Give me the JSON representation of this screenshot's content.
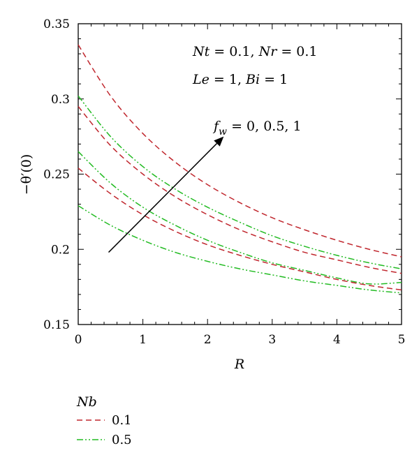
{
  "chart_data": {
    "type": "line",
    "xlabel": "R",
    "ylabel": "−θ′(0)",
    "xlim": [
      0,
      5
    ],
    "ylim": [
      0.15,
      0.35
    ],
    "xticks": [
      "0",
      "1",
      "2",
      "3",
      "4",
      "5"
    ],
    "yticks": [
      "0.15",
      "0.2",
      "0.25",
      "0.3",
      "0.35"
    ],
    "xtick_values": [
      0,
      1,
      2,
      3,
      4,
      5
    ],
    "ytick_values": [
      0.15,
      0.2,
      0.25,
      0.3,
      0.35
    ],
    "annotations": {
      "params_line1": {
        "nt": "Nt",
        "nt_val": " = 0.1, ",
        "nr": "Nr",
        "nr_val": " = 0.1"
      },
      "params_line2": {
        "le": "Le",
        "le_val": " = 1, ",
        "bi": "Bi",
        "bi_val": " = 1"
      },
      "arrow_label": {
        "f": "f",
        "sub": "w",
        "val": " = 0, 0.5, 1"
      },
      "arrow": {
        "x0": 0.47,
        "y0": 0.198,
        "x1": 2.25,
        "y1": 0.275
      }
    },
    "legend": {
      "title": "Nb",
      "placement": "below",
      "entries": [
        {
          "label": "0.1",
          "color": "#c0262d",
          "dash": "dashed"
        },
        {
          "label": "0.5",
          "color": "#22bb22",
          "dash": "dashdotdot"
        }
      ]
    },
    "series": [
      {
        "group": "0.1",
        "color": "#c0262d",
        "dash": "dashed",
        "x": [
          0,
          0.5,
          1,
          1.5,
          2,
          2.5,
          3,
          3.5,
          4,
          4.5,
          5
        ],
        "y": [
          0.336,
          0.302,
          0.277,
          0.258,
          0.243,
          0.231,
          0.221,
          0.213,
          0.206,
          0.2,
          0.195
        ]
      },
      {
        "group": "0.1",
        "color": "#c0262d",
        "dash": "dashed",
        "x": [
          0,
          0.5,
          1,
          1.5,
          2,
          2.5,
          3,
          3.5,
          4,
          4.5,
          5
        ],
        "y": [
          0.295,
          0.269,
          0.25,
          0.235,
          0.223,
          0.213,
          0.205,
          0.198,
          0.193,
          0.188,
          0.184
        ]
      },
      {
        "group": "0.1",
        "color": "#c0262d",
        "dash": "dashed",
        "x": [
          0,
          0.5,
          1,
          1.5,
          2,
          2.5,
          3,
          3.5,
          4,
          4.5,
          5
        ],
        "y": [
          0.254,
          0.237,
          0.223,
          0.212,
          0.203,
          0.196,
          0.19,
          0.185,
          0.18,
          0.176,
          0.173
        ]
      },
      {
        "group": "0.5",
        "color": "#22bb22",
        "dash": "dashdotdot",
        "x": [
          0,
          0.5,
          1,
          1.5,
          2,
          2.5,
          3,
          3.5,
          4,
          4.5,
          5
        ],
        "y": [
          0.302,
          0.275,
          0.255,
          0.24,
          0.228,
          0.218,
          0.209,
          0.202,
          0.196,
          0.191,
          0.187
        ]
      },
      {
        "group": "0.5",
        "color": "#22bb22",
        "dash": "dashdotdot",
        "x": [
          0,
          0.5,
          1,
          1.5,
          2,
          2.5,
          3,
          3.5,
          4,
          4.5,
          5
        ],
        "y": [
          0.265,
          0.244,
          0.228,
          0.216,
          0.206,
          0.198,
          0.191,
          0.186,
          0.181,
          0.177,
          0.178
        ]
      },
      {
        "group": "0.5",
        "color": "#22bb22",
        "dash": "dashdotdot",
        "x": [
          0,
          0.5,
          1,
          1.5,
          2,
          2.5,
          3,
          3.5,
          4,
          4.5,
          5
        ],
        "y": [
          0.229,
          0.216,
          0.206,
          0.198,
          0.192,
          0.187,
          0.183,
          0.179,
          0.176,
          0.173,
          0.171
        ]
      }
    ]
  }
}
